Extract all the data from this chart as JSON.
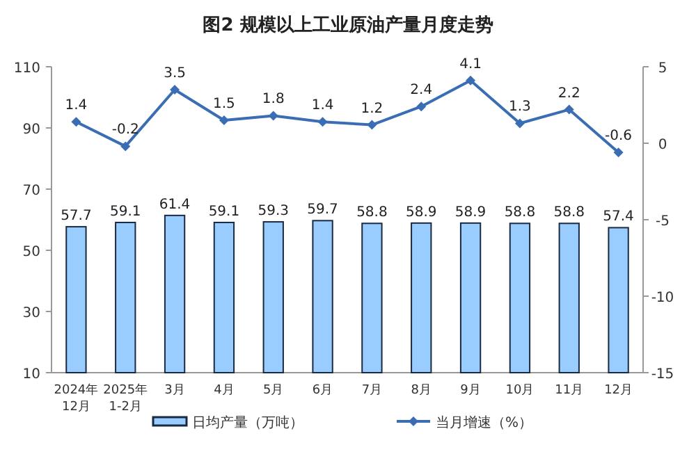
{
  "chart_data": {
    "type": "bar",
    "title": "图2  规模以上工业原油产量月度走势",
    "categories": [
      "2024年\n12月",
      "2025年\n1-2月",
      "3月",
      "4月",
      "5月",
      "6月",
      "7月",
      "8月",
      "9月",
      "10月",
      "11月",
      "12月"
    ],
    "series": [
      {
        "name": "日均产量（万吨）",
        "color": "#99ccff",
        "values": [
          57.7,
          59.1,
          61.4,
          59.1,
          59.3,
          59.7,
          58.8,
          58.9,
          58.9,
          58.8,
          58.8,
          57.4
        ]
      },
      {
        "name": "当月增速（%）",
        "type": "line",
        "axis": "y2",
        "color": "#3a6db4",
        "marker": "diamond",
        "values": [
          1.4,
          -0.2,
          3.5,
          1.5,
          1.8,
          1.4,
          1.2,
          2.4,
          4.1,
          1.3,
          2.2,
          -0.6
        ]
      }
    ],
    "ylim": [
      10,
      110
    ],
    "yticks": [
      10,
      30,
      50,
      70,
      90,
      110
    ],
    "y2lim": [
      -15,
      5
    ],
    "y2ticks": [
      -15,
      -10,
      -5,
      0,
      5
    ],
    "data_labels": true,
    "grid": false,
    "legend": "bottom"
  }
}
